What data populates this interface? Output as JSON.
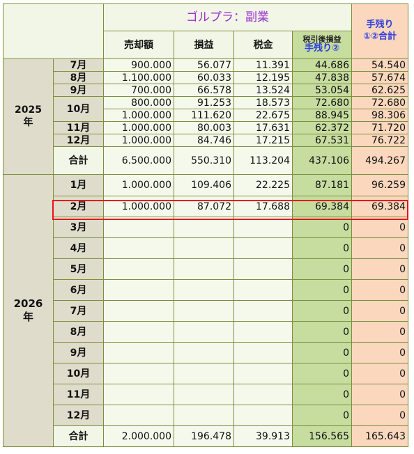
{
  "header": {
    "group_title": "ゴルプラ：副業",
    "col_sales": "売却額",
    "col_profit": "損益",
    "col_tax": "税金",
    "col_net_line1": "税引後損益",
    "col_net_line2": "手残り②",
    "col_total_line1": "手残り",
    "col_total_line2": "①②合計"
  },
  "year2025": {
    "label_line1": "2025",
    "label_line2": "年",
    "rows": [
      {
        "month": "7月",
        "sales": "900.000",
        "profit": "56.077",
        "tax": "11.391",
        "net": "44.686",
        "total": "54.540"
      },
      {
        "month": "8月",
        "sales": "1.100.000",
        "profit": "60.033",
        "tax": "12.195",
        "net": "47.838",
        "total": "57.674"
      },
      {
        "month": "9月",
        "sales": "700.000",
        "profit": "66.578",
        "tax": "13.524",
        "net": "53.054",
        "total": "62.625"
      },
      {
        "month": "10月",
        "sales": "800.000",
        "profit": "91.253",
        "tax": "18.573",
        "net": "72.680",
        "total": "72.680"
      },
      {
        "month": "",
        "sales": "1.000.000",
        "profit": "111.620",
        "tax": "22.675",
        "net": "88.945",
        "total": "98.306"
      },
      {
        "month": "11月",
        "sales": "1.000.000",
        "profit": "80.003",
        "tax": "17.631",
        "net": "62.372",
        "total": "71.720"
      },
      {
        "month": "12月",
        "sales": "1.000.000",
        "profit": "84.746",
        "tax": "17.215",
        "net": "67.531",
        "total": "76.722"
      }
    ],
    "sum": {
      "label": "合計",
      "sales": "6.500.000",
      "profit": "550.310",
      "tax": "113.204",
      "net": "437.106",
      "total": "494.267"
    }
  },
  "year2026": {
    "label_line1": "2026",
    "label_line2": "年",
    "rows": [
      {
        "month": "1月",
        "sales": "1.000.000",
        "profit": "109.406",
        "tax": "22.225",
        "net": "87.181",
        "total": "96.259"
      },
      {
        "month": "2月",
        "sales": "1.000.000",
        "profit": "87.072",
        "tax": "17.688",
        "net": "69.384",
        "total": "69.384"
      },
      {
        "month": "3月",
        "sales": "",
        "profit": "",
        "tax": "",
        "net": "0",
        "total": "0"
      },
      {
        "month": "4月",
        "sales": "",
        "profit": "",
        "tax": "",
        "net": "0",
        "total": "0"
      },
      {
        "month": "5月",
        "sales": "",
        "profit": "",
        "tax": "",
        "net": "0",
        "total": "0"
      },
      {
        "month": "6月",
        "sales": "",
        "profit": "",
        "tax": "",
        "net": "0",
        "total": "0"
      },
      {
        "month": "7月",
        "sales": "",
        "profit": "",
        "tax": "",
        "net": "0",
        "total": "0"
      },
      {
        "month": "8月",
        "sales": "",
        "profit": "",
        "tax": "",
        "net": "0",
        "total": "0"
      },
      {
        "month": "9月",
        "sales": "",
        "profit": "",
        "tax": "",
        "net": "0",
        "total": "0"
      },
      {
        "month": "10月",
        "sales": "",
        "profit": "",
        "tax": "",
        "net": "0",
        "total": "0"
      },
      {
        "month": "11月",
        "sales": "",
        "profit": "",
        "tax": "",
        "net": "0",
        "total": "0"
      },
      {
        "month": "12月",
        "sales": "",
        "profit": "",
        "tax": "",
        "net": "0",
        "total": "0"
      }
    ],
    "sum": {
      "label": "合計",
      "sales": "2.000.000",
      "profit": "196.478",
      "tax": "39.913",
      "net": "156.565",
      "total": "165.643"
    }
  },
  "colors": {
    "border": "#7a8f3d",
    "net_column": "#c7dc9f",
    "total_column": "#fad7bd",
    "highlight": "#e8111a",
    "header_title": "#9b30d0",
    "header_blue": "#2b3ce0"
  }
}
